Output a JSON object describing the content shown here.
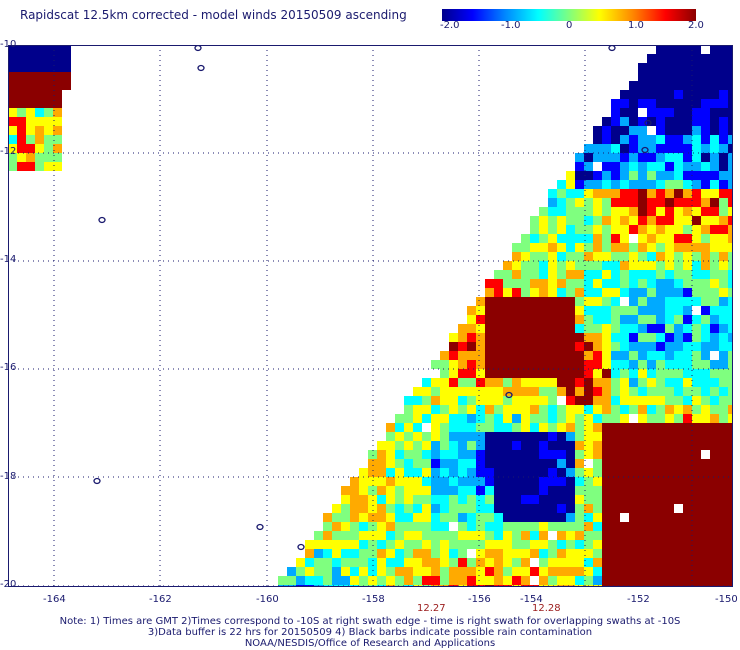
{
  "title": "Rapidscat 12.5km corrected - model winds 20150509 ascending",
  "colorbar": {
    "min": -2.0,
    "max": 2.0,
    "ticks": [
      "-2.0",
      "-1.0",
      "0",
      "1.0",
      "2.0"
    ],
    "colors": [
      "#00008b",
      "#0000ff",
      "#00aaff",
      "#00ffff",
      "#7fff7f",
      "#ffff00",
      "#ffaa00",
      "#ff0000",
      "#8b0000"
    ]
  },
  "map": {
    "lon_range": [
      -165,
      -150
    ],
    "lat_range": [
      -20,
      -10
    ],
    "lat_labels": [
      "-10",
      "-12",
      "-14",
      "-16",
      "-18",
      "-20"
    ],
    "lon_labels": [
      "-164",
      "-162",
      "-160",
      "-158",
      "-156",
      "-154",
      "-152",
      "-150"
    ],
    "time_labels": [
      {
        "lon": -156,
        "text": "12.27"
      },
      {
        "lon": -154,
        "text": "12.28"
      }
    ],
    "land_color": "#1a1a6e",
    "grid_color": "#1a1a6e"
  },
  "notes": [
    "Note: 1) Times are GMT 2)Times correspond to -10S at right swath edge - time is right swath for overlapping swaths at -10S",
    "3)Data buffer is 22 hrs for 20150509 4) Black barbs indicate possible rain contamination",
    "NOAA/NESDIS/Office of Research and Applications"
  ]
}
